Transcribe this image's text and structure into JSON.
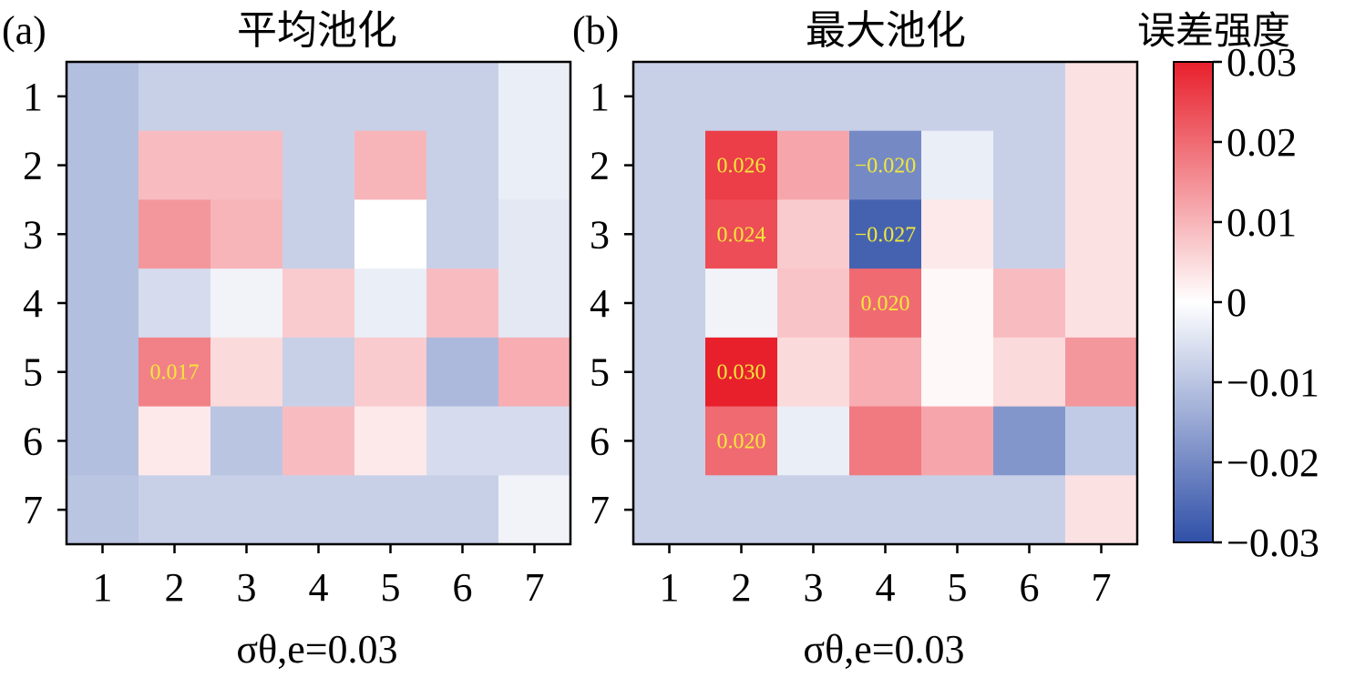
{
  "chart_data": [
    {
      "type": "heatmap",
      "panel_label": "(a)",
      "title": "平均池化",
      "xlabel": "σθ,e=0.03",
      "x_ticks": [
        "1",
        "2",
        "3",
        "4",
        "5",
        "6",
        "7"
      ],
      "y_ticks": [
        "1",
        "2",
        "3",
        "4",
        "5",
        "6",
        "7"
      ],
      "values": [
        [
          -0.011,
          -0.008,
          -0.008,
          -0.008,
          -0.008,
          -0.008,
          -0.003
        ],
        [
          -0.011,
          0.009,
          0.009,
          -0.008,
          0.01,
          -0.008,
          -0.003
        ],
        [
          -0.011,
          0.014,
          0.01,
          -0.008,
          0.0,
          -0.008,
          -0.004
        ],
        [
          -0.011,
          -0.006,
          -0.002,
          0.007,
          -0.003,
          0.009,
          -0.004
        ],
        [
          -0.011,
          0.017,
          0.005,
          -0.008,
          0.007,
          -0.012,
          0.011
        ],
        [
          -0.011,
          0.003,
          -0.01,
          0.009,
          0.003,
          -0.006,
          -0.006
        ],
        [
          -0.01,
          -0.008,
          -0.008,
          -0.008,
          -0.008,
          -0.008,
          -0.002
        ]
      ],
      "annotations": [
        {
          "row": 5,
          "col": 2,
          "text": "0.017"
        }
      ]
    },
    {
      "type": "heatmap",
      "panel_label": "(b)",
      "title": "最大池化",
      "xlabel": "σθ,e=0.03",
      "x_ticks": [
        "1",
        "2",
        "3",
        "4",
        "5",
        "6",
        "7"
      ],
      "y_ticks": [
        "1",
        "2",
        "3",
        "4",
        "5",
        "6",
        "7"
      ],
      "values": [
        [
          -0.008,
          -0.008,
          -0.008,
          -0.008,
          -0.008,
          -0.008,
          0.004
        ],
        [
          -0.008,
          0.026,
          0.012,
          -0.02,
          -0.003,
          -0.008,
          0.004
        ],
        [
          -0.008,
          0.024,
          0.007,
          -0.027,
          0.003,
          -0.008,
          0.004
        ],
        [
          -0.008,
          -0.002,
          0.008,
          0.02,
          0.001,
          0.009,
          0.004
        ],
        [
          -0.008,
          0.03,
          0.005,
          0.011,
          0.001,
          0.005,
          0.014
        ],
        [
          -0.008,
          0.02,
          -0.003,
          0.018,
          0.012,
          -0.018,
          -0.009
        ],
        [
          -0.008,
          -0.008,
          -0.008,
          -0.008,
          -0.008,
          -0.008,
          0.004
        ]
      ],
      "annotations": [
        {
          "row": 2,
          "col": 2,
          "text": "0.026"
        },
        {
          "row": 2,
          "col": 4,
          "text": "−0.020"
        },
        {
          "row": 3,
          "col": 2,
          "text": "0.024"
        },
        {
          "row": 3,
          "col": 4,
          "text": "−0.027"
        },
        {
          "row": 4,
          "col": 4,
          "text": "0.020"
        },
        {
          "row": 5,
          "col": 2,
          "text": "0.030"
        },
        {
          "row": 6,
          "col": 2,
          "text": "0.020"
        }
      ]
    }
  ],
  "colorbar": {
    "title": "误差强度",
    "range": [
      -0.03,
      0.03
    ],
    "ticks": [
      0.03,
      0.02,
      0.01,
      0,
      -0.01,
      -0.02,
      -0.03
    ],
    "tick_labels": [
      "0.03",
      "0.02",
      "0.01",
      "0",
      "−0.01",
      "−0.02",
      "−0.03"
    ],
    "colors": {
      "low": "#3050a8",
      "mid": "#ffffff",
      "high": "#e8202c"
    }
  },
  "annotation_color": "#f2e83a"
}
